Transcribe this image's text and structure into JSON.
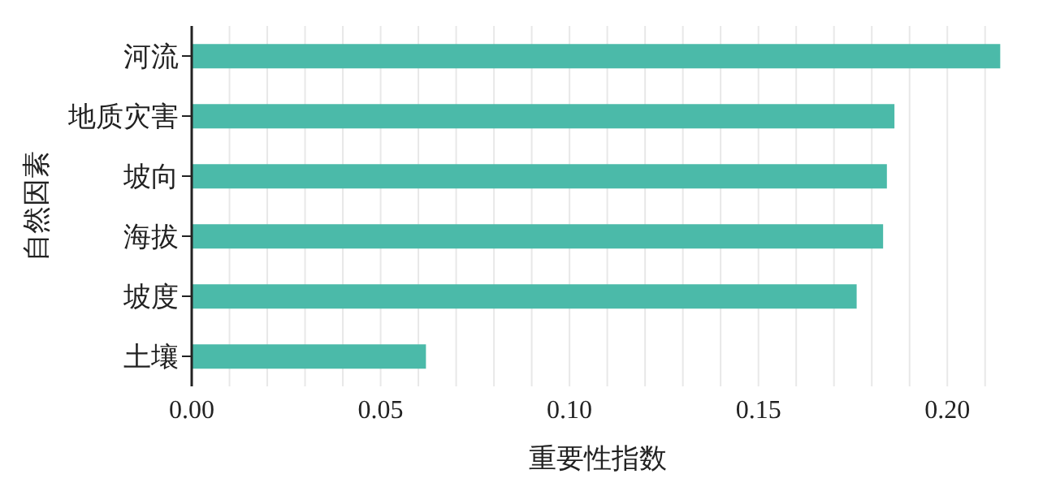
{
  "chart_data": {
    "type": "bar",
    "orientation": "horizontal",
    "xlabel": "重要性指数",
    "ylabel": "自然因素",
    "categories": [
      "河流",
      "地质灾害",
      "坡向",
      "海拔",
      "坡度",
      "土壤"
    ],
    "values": [
      0.214,
      0.186,
      0.184,
      0.183,
      0.176,
      0.062
    ],
    "color": "#4bbaa9",
    "xlim": [
      0,
      0.215
    ],
    "xticks": [
      {
        "value": 0,
        "label": "0.00"
      },
      {
        "value": 0.01,
        "label": null
      },
      {
        "value": 0.02,
        "label": null
      },
      {
        "value": 0.03,
        "label": null
      },
      {
        "value": 0.04,
        "label": null
      },
      {
        "value": 0.05,
        "label": "0.05"
      },
      {
        "value": 0.06,
        "label": null
      },
      {
        "value": 0.07,
        "label": null
      },
      {
        "value": 0.08,
        "label": null
      },
      {
        "value": 0.09,
        "label": null
      },
      {
        "value": 0.1,
        "label": "0.10"
      },
      {
        "value": 0.11,
        "label": null
      },
      {
        "value": 0.12,
        "label": null
      },
      {
        "value": 0.13,
        "label": null
      },
      {
        "value": 0.14,
        "label": null
      },
      {
        "value": 0.15,
        "label": "0.15"
      },
      {
        "value": 0.16,
        "label": null
      },
      {
        "value": 0.17,
        "label": null
      },
      {
        "value": 0.18,
        "label": null
      },
      {
        "value": 0.19,
        "label": null
      },
      {
        "value": 0.2,
        "label": "0.20"
      },
      {
        "value": 0.21,
        "label": null
      }
    ],
    "grid": "x"
  }
}
